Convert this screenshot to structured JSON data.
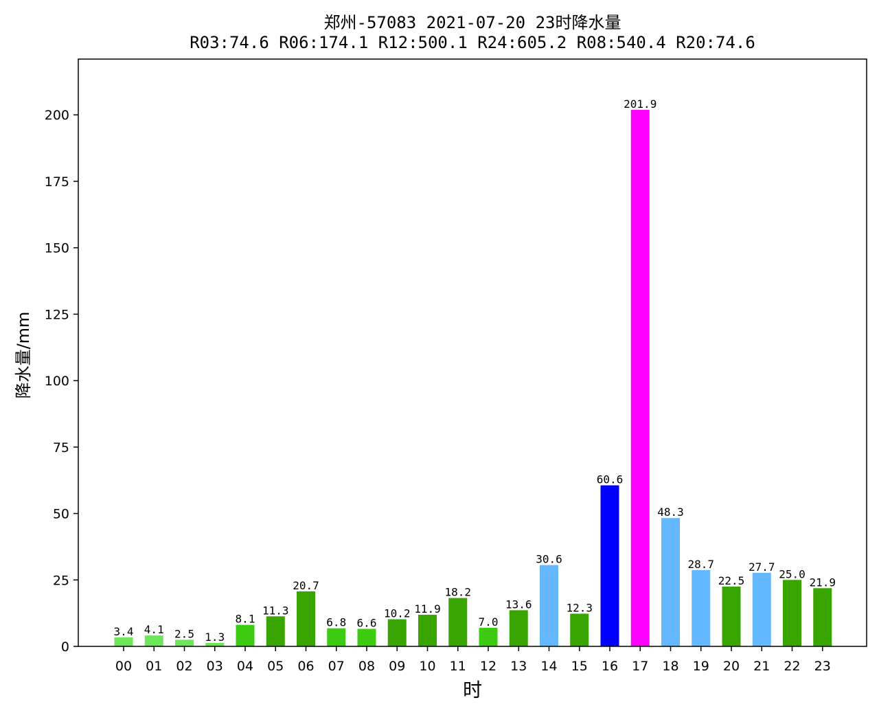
{
  "chart_data": {
    "type": "bar",
    "title": "郑州-57083  2021-07-20 23时降水量",
    "subtitle": "R03:74.6  R06:174.1  R12:500.1  R24:605.2  R08:540.4  R20:74.6",
    "xlabel": "时",
    "ylabel": "降水量/mm",
    "ylim": [
      0,
      221
    ],
    "yticks": [
      0,
      25,
      50,
      75,
      100,
      125,
      150,
      175,
      200
    ],
    "grid": false,
    "categories": [
      "00",
      "01",
      "02",
      "03",
      "04",
      "05",
      "06",
      "07",
      "08",
      "09",
      "10",
      "11",
      "12",
      "13",
      "14",
      "15",
      "16",
      "17",
      "18",
      "19",
      "20",
      "21",
      "22",
      "23"
    ],
    "values": [
      3.4,
      4.1,
      2.5,
      1.3,
      8.1,
      11.3,
      20.7,
      6.8,
      6.6,
      10.2,
      11.9,
      18.2,
      7.0,
      13.6,
      30.6,
      12.3,
      60.6,
      201.9,
      48.3,
      28.7,
      22.5,
      27.7,
      25.0,
      21.9
    ],
    "value_labels": [
      "3.4",
      "4.1",
      "2.5",
      "1.3",
      "8.1",
      "11.3",
      "20.7",
      "6.8",
      "6.6",
      "10.2",
      "11.9",
      "18.2",
      "7.0",
      "13.6",
      "30.6",
      "12.3",
      "60.6",
      "201.9",
      "48.3",
      "28.7",
      "22.5",
      "27.7",
      "25.0",
      "21.9"
    ],
    "bar_colors": [
      "#6ee65a",
      "#6ee65a",
      "#6ee65a",
      "#6ee65a",
      "#3ccb10",
      "#38a500",
      "#38a500",
      "#3ccb10",
      "#3ccb10",
      "#38a500",
      "#38a500",
      "#38a500",
      "#3ccb10",
      "#38a500",
      "#63b8ff",
      "#38a500",
      "#0000ff",
      "#ff00ff",
      "#63b8ff",
      "#63b8ff",
      "#38a500",
      "#63b8ff",
      "#38a500",
      "#38a500"
    ]
  }
}
